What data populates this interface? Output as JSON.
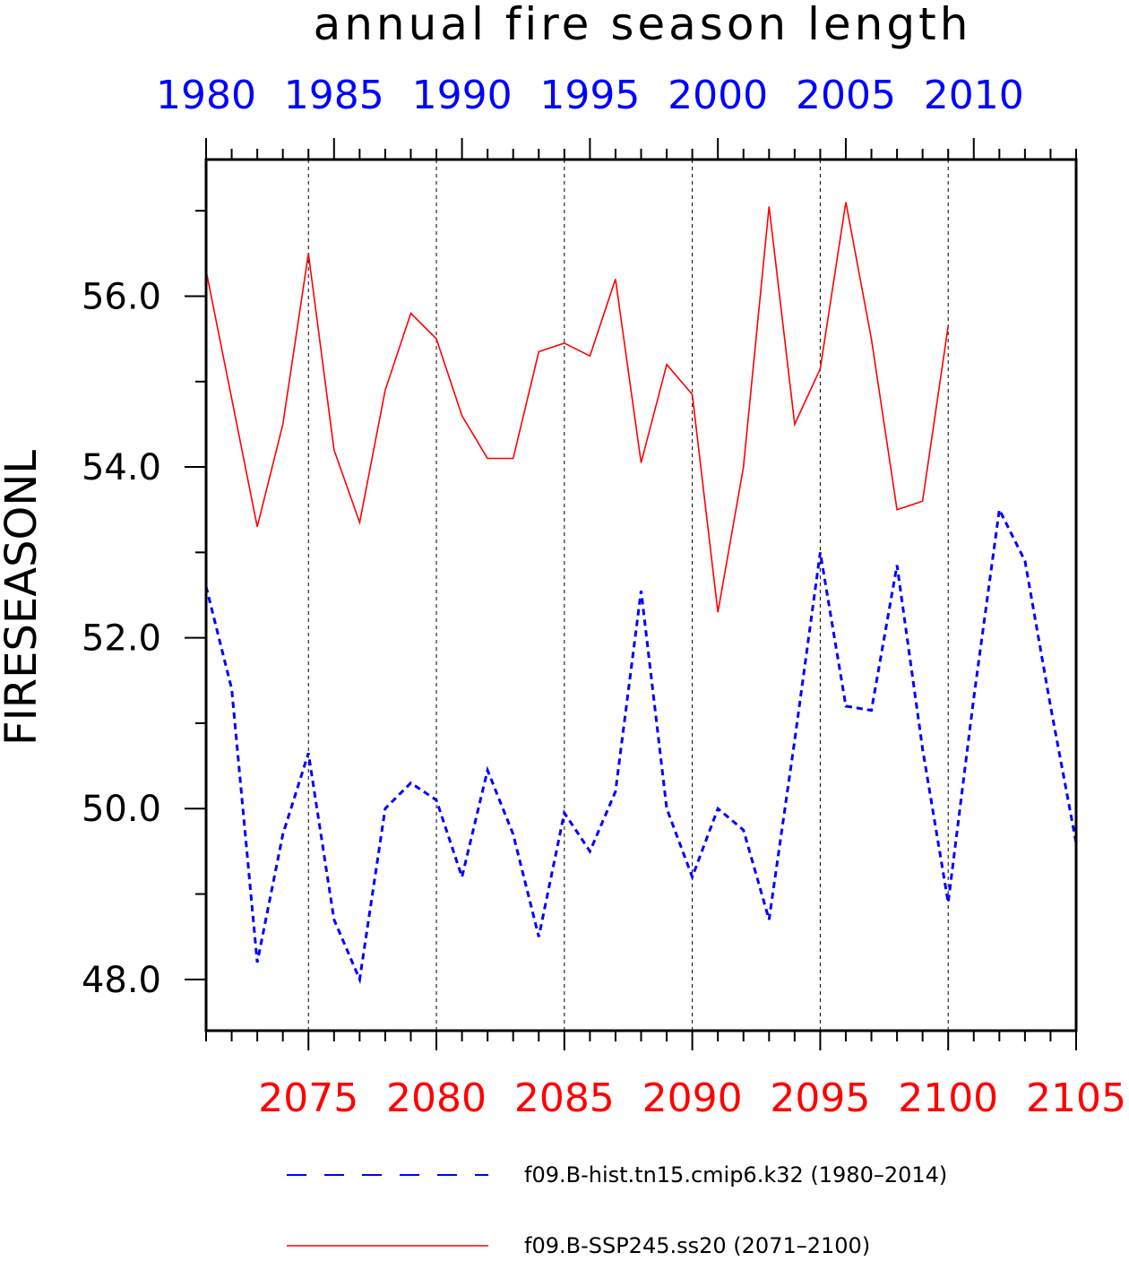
{
  "chart_data": {
    "type": "line",
    "title": "annual fire season length",
    "ylabel": "FIRESEASONL",
    "ylim": [
      47.4,
      57.6
    ],
    "yticks": [
      "48.0",
      "50.0",
      "52.0",
      "54.0",
      "56.0"
    ],
    "top_axis": {
      "color": "#0000ff",
      "range": [
        1980,
        2014
      ],
      "ticks": [
        "1980",
        "1985",
        "1990",
        "1995",
        "2000",
        "2005",
        "2010"
      ]
    },
    "bottom_axis": {
      "color": "#ff0000",
      "range": [
        2071,
        2105
      ],
      "ticks": [
        "2075",
        "2080",
        "2085",
        "2090",
        "2095",
        "2100",
        "2105"
      ]
    },
    "grid": "vertical dashed at bottom-axis major ticks",
    "legend_position": "bottom",
    "series": [
      {
        "name": "f09.B-hist.tn15.cmip6.k32 (1980–2014)",
        "color": "#0000ff",
        "style": "dashed",
        "axis": "top",
        "x": [
          1980,
          1981,
          1982,
          1983,
          1984,
          1985,
          1986,
          1987,
          1988,
          1989,
          1990,
          1991,
          1992,
          1993,
          1994,
          1995,
          1996,
          1997,
          1998,
          1999,
          2000,
          2001,
          2002,
          2003,
          2004,
          2005,
          2006,
          2007,
          2008,
          2009,
          2010,
          2011,
          2012,
          2013,
          2014
        ],
        "values": [
          52.6,
          51.4,
          48.2,
          49.7,
          50.65,
          48.7,
          48.0,
          50.0,
          50.3,
          50.1,
          49.2,
          50.45,
          49.7,
          48.5,
          49.95,
          49.5,
          50.2,
          52.55,
          50.0,
          49.2,
          50.0,
          49.75,
          48.7,
          50.8,
          53.0,
          51.2,
          51.15,
          52.85,
          50.7,
          48.9,
          51.3,
          53.5,
          52.9,
          51.2,
          49.6
        ]
      },
      {
        "name": "f09.B-SSP245.ss20 (2071–2100)",
        "color": "#ff0000",
        "style": "solid",
        "axis": "bottom",
        "x": [
          2071,
          2072,
          2073,
          2074,
          2075,
          2076,
          2077,
          2078,
          2079,
          2080,
          2081,
          2082,
          2083,
          2084,
          2085,
          2086,
          2087,
          2088,
          2089,
          2090,
          2091,
          2092,
          2093,
          2094,
          2095,
          2096,
          2097,
          2098,
          2099,
          2100
        ],
        "values": [
          56.3,
          54.8,
          53.3,
          54.5,
          56.5,
          54.2,
          53.35,
          54.9,
          55.8,
          55.5,
          54.6,
          54.1,
          54.1,
          55.35,
          55.45,
          55.3,
          56.2,
          54.05,
          55.2,
          54.85,
          52.3,
          54.0,
          57.05,
          54.5,
          55.15,
          57.1,
          55.5,
          53.5,
          53.6,
          55.65
        ]
      }
    ]
  }
}
